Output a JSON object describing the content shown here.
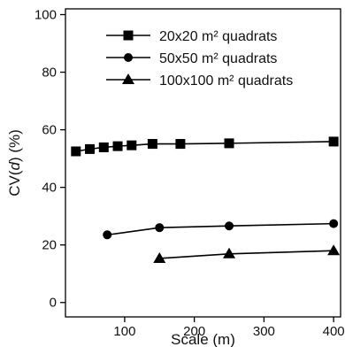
{
  "chart_data": {
    "type": "line",
    "xlabel": "Scale (m)",
    "ylabel_parts": [
      "CV(",
      "d",
      ") (%)"
    ],
    "xlim": [
      15,
      410
    ],
    "ylim": [
      -5,
      102
    ],
    "xticks": [
      100,
      200,
      300,
      400
    ],
    "yticks": [
      0,
      20,
      40,
      60,
      80,
      100
    ],
    "grid": false,
    "legend_position": "top-right",
    "series": [
      {
        "name": "20x20 m² quadrats",
        "marker": "square",
        "x": [
          30,
          50,
          70,
          90,
          110,
          140,
          180,
          250,
          400
        ],
        "y": [
          52.5,
          53.3,
          53.9,
          54.3,
          54.6,
          55.1,
          55.1,
          55.3,
          55.9
        ]
      },
      {
        "name": "50x50 m² quadrats",
        "marker": "circle",
        "x": [
          75,
          150,
          250,
          400
        ],
        "y": [
          23.5,
          26.0,
          26.6,
          27.4
        ]
      },
      {
        "name": "100x100 m² quadrats",
        "marker": "triangle",
        "x": [
          150,
          250,
          400
        ],
        "y": [
          15.3,
          16.9,
          18.0
        ]
      }
    ]
  },
  "colors": {
    "line": "#000000",
    "marker": "#000000"
  }
}
